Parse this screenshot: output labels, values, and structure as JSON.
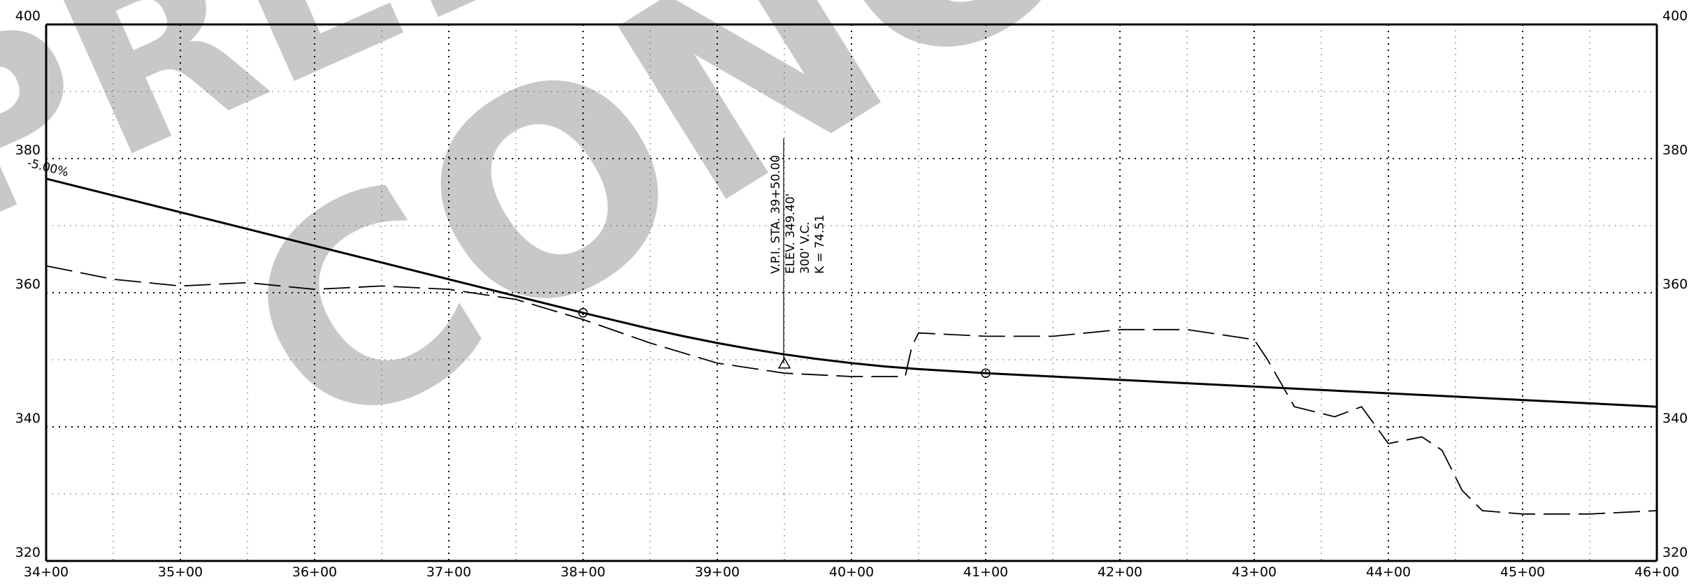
{
  "watermark": {
    "line1": "PRELIMINARY",
    "line2": "CONCEPT",
    "color": "#c8c8c8"
  },
  "chart_data": {
    "type": "line",
    "title": "",
    "xlabel": "",
    "ylabel": "",
    "x_unit": "station (ft)",
    "xlim": [
      3400,
      4600
    ],
    "ylim": [
      320,
      400
    ],
    "grid": true,
    "x_ticks": [
      {
        "value": 3400,
        "label": "34+00"
      },
      {
        "value": 3500,
        "label": "35+00"
      },
      {
        "value": 3600,
        "label": "36+00"
      },
      {
        "value": 3700,
        "label": "37+00"
      },
      {
        "value": 3800,
        "label": "38+00"
      },
      {
        "value": 3900,
        "label": "39+00"
      },
      {
        "value": 4000,
        "label": "40+00"
      },
      {
        "value": 4100,
        "label": "41+00"
      },
      {
        "value": 4200,
        "label": "42+00"
      },
      {
        "value": 4300,
        "label": "43+00"
      },
      {
        "value": 4400,
        "label": "44+00"
      },
      {
        "value": 4500,
        "label": "45+00"
      },
      {
        "value": 4600,
        "label": "46+00"
      }
    ],
    "y_ticks": [
      {
        "value": 320,
        "label": "320"
      },
      {
        "value": 340,
        "label": "340"
      },
      {
        "value": 360,
        "label": "360"
      },
      {
        "value": 380,
        "label": "380"
      },
      {
        "value": 400,
        "label": "400"
      }
    ],
    "series": [
      {
        "style": "solid",
        "color": "#000000",
        "x": [
          3400,
          3450,
          3500,
          3550,
          3600,
          3650,
          3700,
          3750,
          3800,
          3825,
          3850,
          3875,
          3900,
          3925,
          3950,
          3975,
          4000,
          4025,
          4050,
          4075,
          4100,
          4150,
          4200,
          4250,
          4300,
          4350,
          4400,
          4450,
          4500,
          4550,
          4600
        ],
        "y": [
          377.0,
          374.5,
          372.0,
          369.5,
          367.0,
          364.5,
          362.0,
          359.5,
          357.0,
          355.8,
          354.6,
          353.5,
          352.5,
          351.6,
          350.8,
          350.1,
          349.5,
          349.0,
          348.6,
          348.3,
          348.0,
          347.5,
          347.0,
          346.5,
          346.0,
          345.5,
          345.0,
          344.5,
          344.0,
          343.5,
          343.0
        ]
      },
      {
        "style": "dashed",
        "color": "#000000",
        "x": [
          3400,
          3450,
          3500,
          3550,
          3600,
          3650,
          3700,
          3750,
          3800,
          3850,
          3900,
          3950,
          4000,
          4040,
          4045,
          4050,
          4100,
          4150,
          4200,
          4250,
          4300,
          4310,
          4330,
          4360,
          4380,
          4400,
          4425,
          4440,
          4455,
          4470,
          4500,
          4550,
          4600
        ],
        "y": [
          364.0,
          362.0,
          361.0,
          361.5,
          360.5,
          361.0,
          360.5,
          359.0,
          356.0,
          352.5,
          349.5,
          348.0,
          347.5,
          347.5,
          352.0,
          354.0,
          353.5,
          353.5,
          354.5,
          354.5,
          353.0,
          350.0,
          343.0,
          341.5,
          343.0,
          337.5,
          338.5,
          336.5,
          330.5,
          327.5,
          327.0,
          327.0,
          327.5
        ]
      }
    ],
    "markers": [
      {
        "shape": "circle",
        "x": 3800,
        "y": 357.0
      },
      {
        "shape": "triangle",
        "x": 3950,
        "y": 349.4
      },
      {
        "shape": "circle",
        "x": 4100,
        "y": 348.0
      }
    ],
    "annotations": {
      "grade_label": "-5.00%",
      "vpi_lines": [
        "V.P.I. STA. 39+50.00",
        "ELEV. 349.40'",
        "300' V.C.",
        "K = 74.51"
      ]
    }
  }
}
